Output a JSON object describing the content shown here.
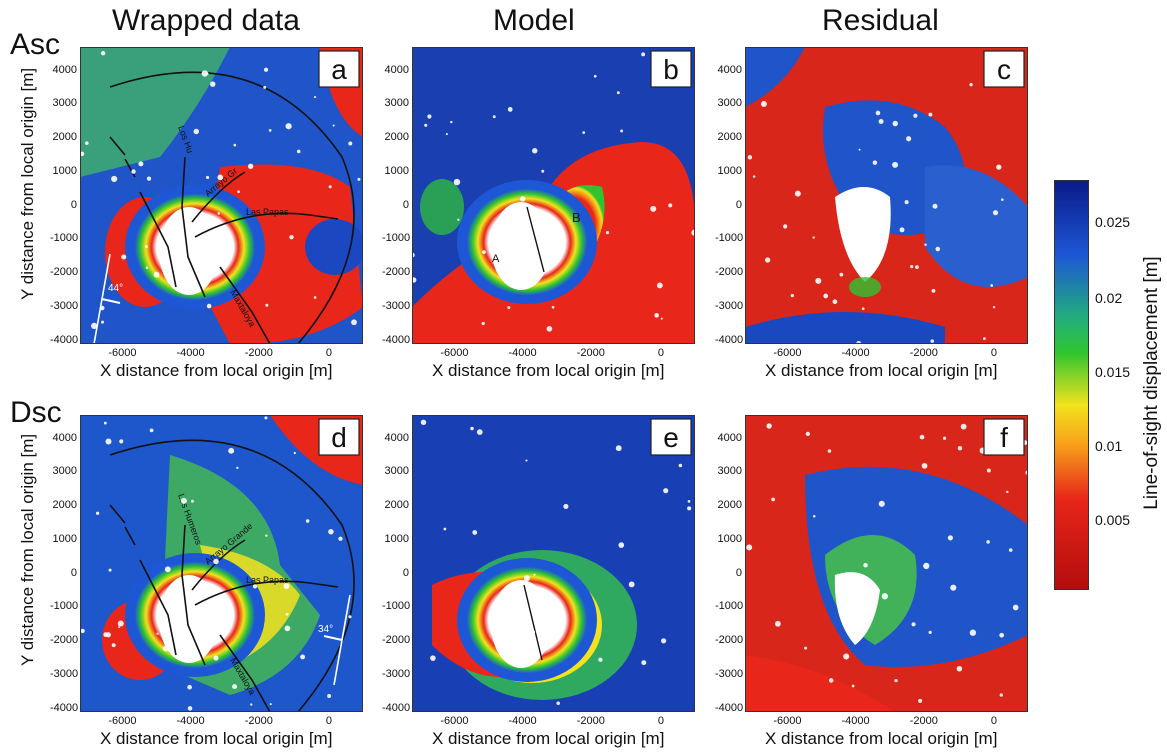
{
  "column_titles": [
    "Wrapped data",
    "Model",
    "Residual"
  ],
  "row_labels": [
    "Asc",
    "Dsc"
  ],
  "x_axis_label": "X distance from local origin [m]",
  "y_axis_label": "Y distance from local origin [m]",
  "x_ticks": [
    "-6000",
    "-4000",
    "-2000",
    "0"
  ],
  "y_ticks": [
    "4000",
    "3000",
    "2000",
    "1000",
    "0",
    "-1000",
    "-2000",
    "-3000",
    "-4000"
  ],
  "panel_letters": [
    "a",
    "b",
    "c",
    "d",
    "e",
    "f"
  ],
  "fault_labels_asc": [
    "Los Hu",
    "Arrayo Gr",
    "Las Papas",
    "Maxtaloya"
  ],
  "fault_labels_dsc": [
    "Los Humeros",
    "Arrayo Grande",
    "Las Papas",
    "Maxtaloya"
  ],
  "look_angles": [
    "44°",
    "34°"
  ],
  "model_markers": [
    "A",
    "B"
  ],
  "colorbar": {
    "label": "Line-of-sight displacement [m]",
    "ticks": [
      "0.025",
      "0.02",
      "0.015",
      "0.01",
      "0.005"
    ],
    "colors": [
      "#0a1a8a",
      "#1d57d6",
      "#22b07a",
      "#2fc42f",
      "#f3e21d",
      "#f7a519",
      "#e8261a",
      "#b30d0d"
    ]
  }
}
